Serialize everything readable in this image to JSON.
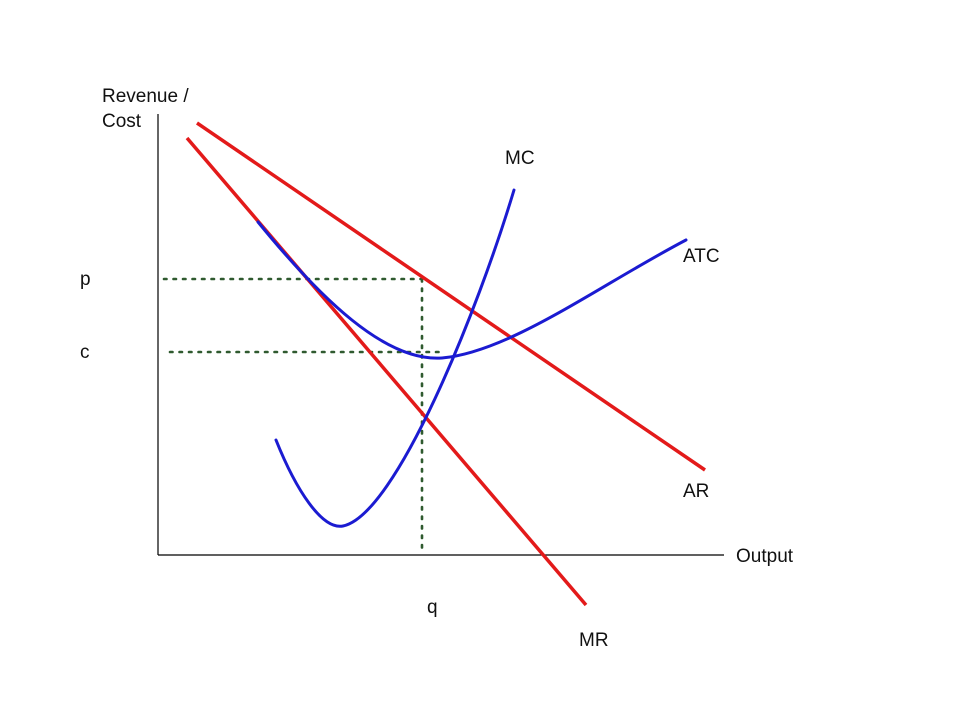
{
  "axes": {
    "y_label_line1": "Revenue /",
    "y_label_line2": "Cost",
    "x_label": "Output"
  },
  "markers": {
    "price": "p",
    "cost": "c",
    "quantity": "q"
  },
  "curves": {
    "mc": "MC",
    "atc": "ATC",
    "ar": "AR",
    "mr": "MR"
  },
  "colors": {
    "revenue_lines": "#e31a1a",
    "cost_curves": "#1b1bd1",
    "guide_lines": "#2f5a2f",
    "axes": "#000000"
  }
}
